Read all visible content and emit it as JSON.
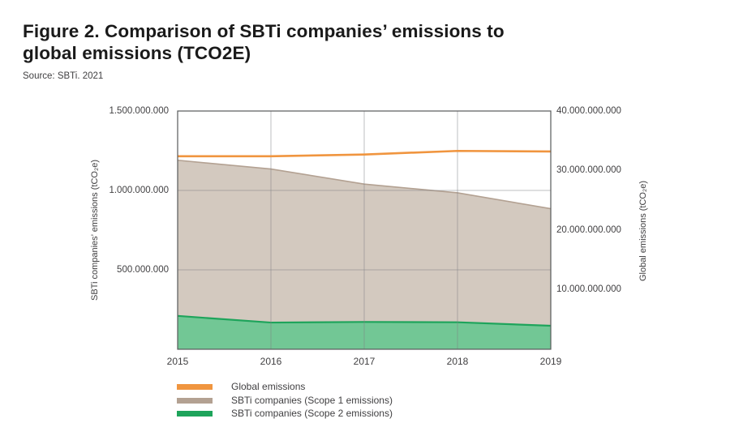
{
  "page": {
    "title_line1": "Figure 2. Comparison of SBTi companies’ emissions to",
    "title_line2": "global emissions (TCO2E)",
    "source": "Source: SBTi. 2021"
  },
  "colors": {
    "background": "#ffffff",
    "title_text": "#1a1a1a",
    "body_text": "#414042",
    "spine": "#58595b",
    "grid": "#7d7f83",
    "orange": "#f0953f",
    "tan_fill": "#d3c9bf",
    "tan_stroke": "#b3a192",
    "green_fill": "#72c795",
    "green_stroke": "#1ea45b"
  },
  "chart_data": {
    "type": "area",
    "stacking": "overlay",
    "grid": true,
    "x": [
      "2015",
      "2016",
      "2017",
      "2018",
      "2019"
    ],
    "series": [
      {
        "name": "SBTi companies (Scope 1 emissions)",
        "type": "area",
        "axis": "left",
        "color": "#b3a192",
        "fill": "#d3c9bf",
        "stroke_width": 1.6,
        "values": [
          1190000000,
          1135000000,
          1040000000,
          985000000,
          885000000
        ]
      },
      {
        "name": "SBTi companies (Scope 2 emissions)",
        "type": "area",
        "axis": "left",
        "color": "#1ea45b",
        "fill": "#72c795",
        "stroke_width": 2.2,
        "values": [
          210000000,
          168000000,
          172000000,
          170000000,
          148000000
        ]
      },
      {
        "name": "Global emissions",
        "type": "line",
        "axis": "right",
        "color": "#f0953f",
        "stroke_width": 2.6,
        "values": [
          32400000000,
          32400000000,
          32700000000,
          33300000000,
          33200000000
        ]
      }
    ],
    "left_axis": {
      "label": "SBTi companies’ emissions (tCO₂e)",
      "min": 0,
      "max": 1500000000,
      "ticks": [
        1500000000,
        1000000000,
        500000000
      ],
      "tick_labels": [
        "1.500.000.000",
        "1.000.000.000",
        "500.000.000"
      ]
    },
    "right_axis": {
      "label": "Global emissions (tCO₂e)",
      "min": 0,
      "max": 40000000000,
      "ticks": [
        40000000000,
        30000000000,
        20000000000,
        10000000000
      ],
      "tick_labels": [
        "40.000.000.000",
        "30.000.000.000",
        "20.000.000.000",
        "10.000.000.000"
      ]
    },
    "legend": {
      "position": "bottom-left",
      "order": [
        "Global emissions",
        "SBTi companies (Scope 1 emissions)",
        "SBTi companies (Scope 2 emissions)"
      ]
    }
  }
}
